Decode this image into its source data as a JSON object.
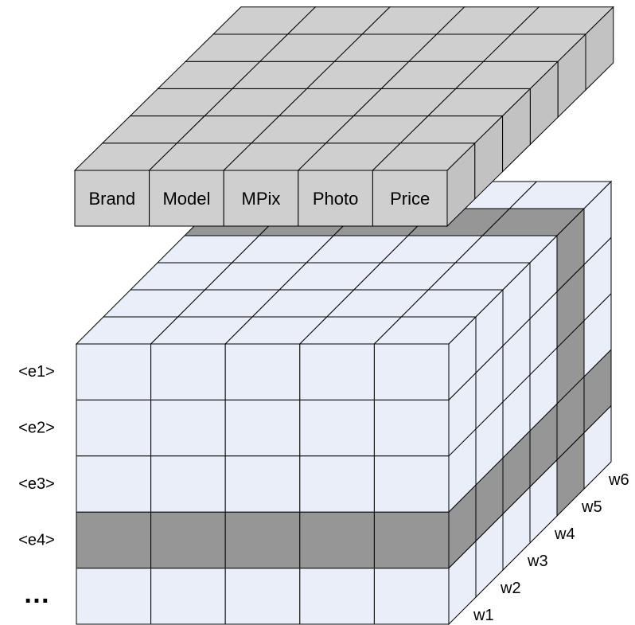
{
  "top_slab": {
    "columns": [
      {
        "id": "brand",
        "label": "Brand"
      },
      {
        "id": "model",
        "label": "Model"
      },
      {
        "id": "mpix",
        "label": "MPix"
      },
      {
        "id": "photo",
        "label": "Photo"
      },
      {
        "id": "price",
        "label": "Price"
      }
    ],
    "depth_rows": 6
  },
  "cube": {
    "rows": [
      {
        "id": "e1",
        "label": "<e1>",
        "shaded": false
      },
      {
        "id": "e2",
        "label": "<e2>",
        "shaded": false
      },
      {
        "id": "e3",
        "label": "<e3>",
        "shaded": false
      },
      {
        "id": "e4",
        "label": "<e4>",
        "shaded": true
      },
      {
        "id": "more",
        "label": "…",
        "shaded": false
      }
    ],
    "columns": 5,
    "depth_layers": [
      {
        "id": "w1",
        "label": "w1"
      },
      {
        "id": "w2",
        "label": "w2"
      },
      {
        "id": "w3",
        "label": "w3"
      },
      {
        "id": "w4",
        "label": "w4"
      },
      {
        "id": "w5",
        "label": "w5"
      },
      {
        "id": "w6",
        "label": "w6"
      }
    ],
    "shaded_depth_layer": "w5"
  },
  "colors": {
    "cell": "#e9eef8",
    "shaded": "#969696",
    "slab": "#cfcfcf",
    "slab_side": "#c2c2c2",
    "line": "#000000"
  }
}
